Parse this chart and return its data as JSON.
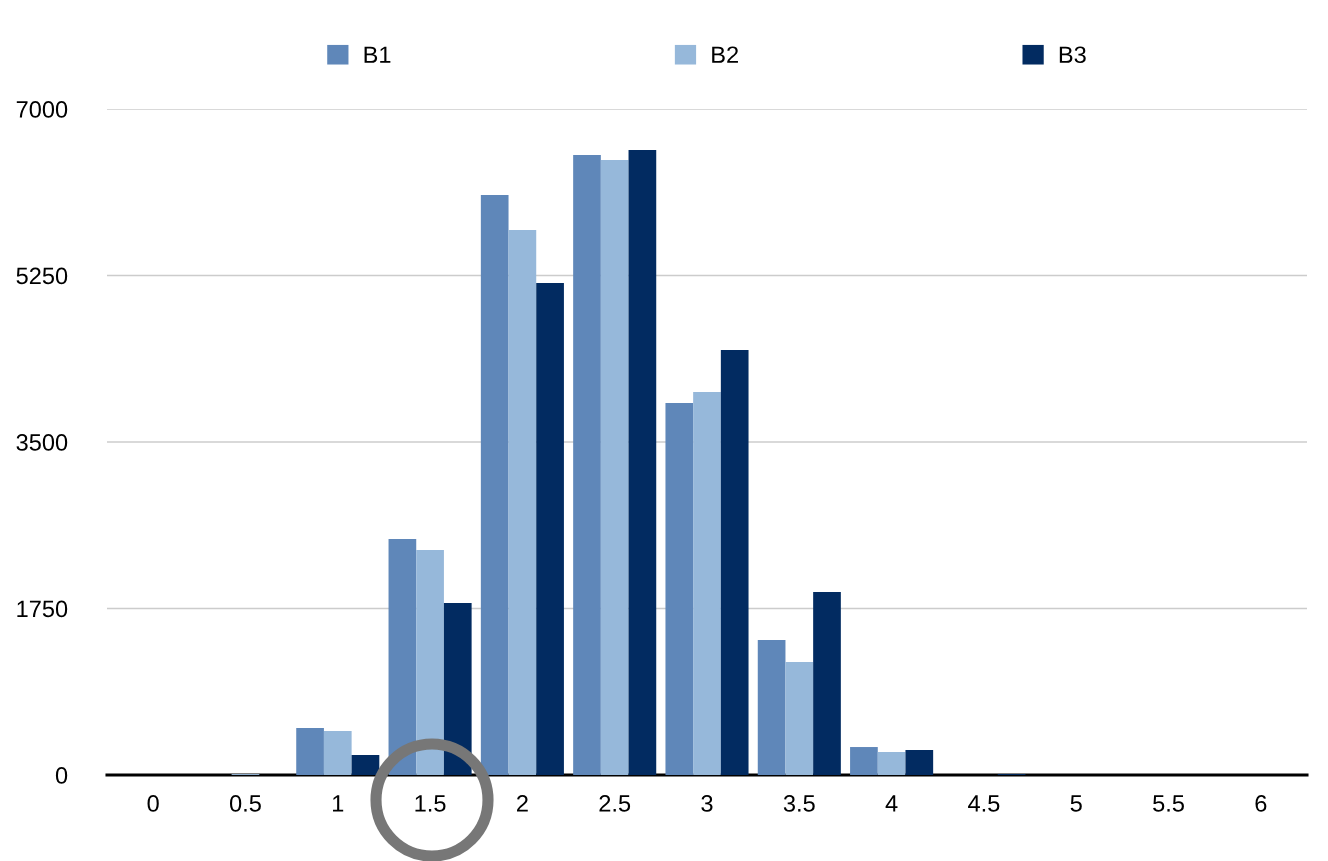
{
  "chart_data": {
    "type": "bar",
    "categories": [
      "0",
      "0.5",
      "1",
      "1.5",
      "2",
      "2.5",
      "3",
      "3.5",
      "4",
      "4.5",
      "5",
      "5.5",
      "6"
    ],
    "series": [
      {
        "name": "B1",
        "color": "#5f87b9",
        "values": [
          0,
          0,
          494,
          2480,
          6096,
          6516,
          3910,
          1419,
          294,
          0,
          0,
          0,
          0
        ]
      },
      {
        "name": "B2",
        "color": "#96b8da",
        "values": [
          0,
          10,
          462,
          2365,
          5728,
          6464,
          4025,
          1188,
          242,
          0,
          0,
          0,
          0
        ]
      },
      {
        "name": "B3",
        "color": "#022b61",
        "values": [
          0,
          0,
          210,
          1808,
          5171,
          6569,
          4467,
          1923,
          263,
          10,
          0,
          0,
          0
        ]
      }
    ],
    "ylim": [
      0,
      7000
    ],
    "yticks": [
      0,
      1750,
      3500,
      5250,
      7000
    ],
    "grid": "y",
    "legend": "top"
  }
}
